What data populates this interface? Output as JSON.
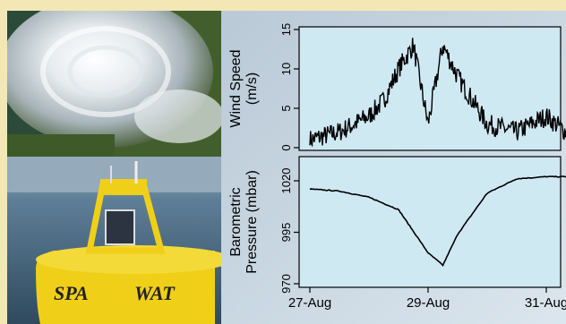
{
  "colors": {
    "frame": "#f3e7b6",
    "plot_bg": "#cfe9f3",
    "line": "#000000",
    "ocean": "#5c7f9a",
    "buoy_yellow": "#f0cf18",
    "storm_bg": "#3f5a2a"
  },
  "photos": {
    "top_left": "satellite-hurricane-image",
    "bottom_left": "yellow-weather-buoy-photo",
    "buoy_text_left": "SPA",
    "buoy_text_right": "WAT"
  },
  "chart_data": [
    {
      "type": "line",
      "title": "",
      "xlabel": "",
      "ylabel": "Wind Speed (m/s)",
      "ylabel_lines": [
        "Wind Speed",
        "(m/s)"
      ],
      "ylim": [
        0,
        15
      ],
      "yticks": [
        0,
        5,
        10,
        15
      ],
      "xlim": [
        "27-Aug",
        "31-Aug"
      ],
      "grid": false,
      "series": [
        {
          "x": [
            "27-Aug 00:00",
            "27-Aug 12:00",
            "28-Aug 00:00",
            "28-Aug 06:00",
            "28-Aug 12:00",
            "28-Aug 18:00",
            "29-Aug 00:00",
            "29-Aug 06:00",
            "29-Aug 12:00",
            "29-Aug 18:00",
            "30-Aug 00:00",
            "30-Aug 12:00",
            "31-Aug 00:00",
            "31-Aug 12:00"
          ],
          "values": [
            1,
            2,
            4,
            6,
            10,
            13,
            3,
            13,
            9,
            6,
            3,
            2,
            4,
            1
          ]
        }
      ]
    },
    {
      "type": "line",
      "title": "",
      "xlabel": "",
      "ylabel": "Barometric Pressure (mbar)",
      "ylabel_lines": [
        "Barometric",
        "Pressure (mbar)"
      ],
      "ylim": [
        970,
        1030
      ],
      "yticks": [
        970,
        995,
        1020
      ],
      "xticks": [
        "27-Aug",
        "29-Aug",
        "31-Aug"
      ],
      "grid": false,
      "series": [
        {
          "x": [
            "27-Aug 00:00",
            "27-Aug 12:00",
            "28-Aug 00:00",
            "28-Aug 12:00",
            "29-Aug 00:00",
            "29-Aug 06:00",
            "29-Aug 12:00",
            "30-Aug 00:00",
            "30-Aug 12:00",
            "31-Aug 00:00",
            "31-Aug 12:00"
          ],
          "values": [
            1016,
            1015,
            1012,
            1006,
            985,
            979,
            994,
            1014,
            1021,
            1022,
            1022
          ]
        }
      ]
    }
  ]
}
